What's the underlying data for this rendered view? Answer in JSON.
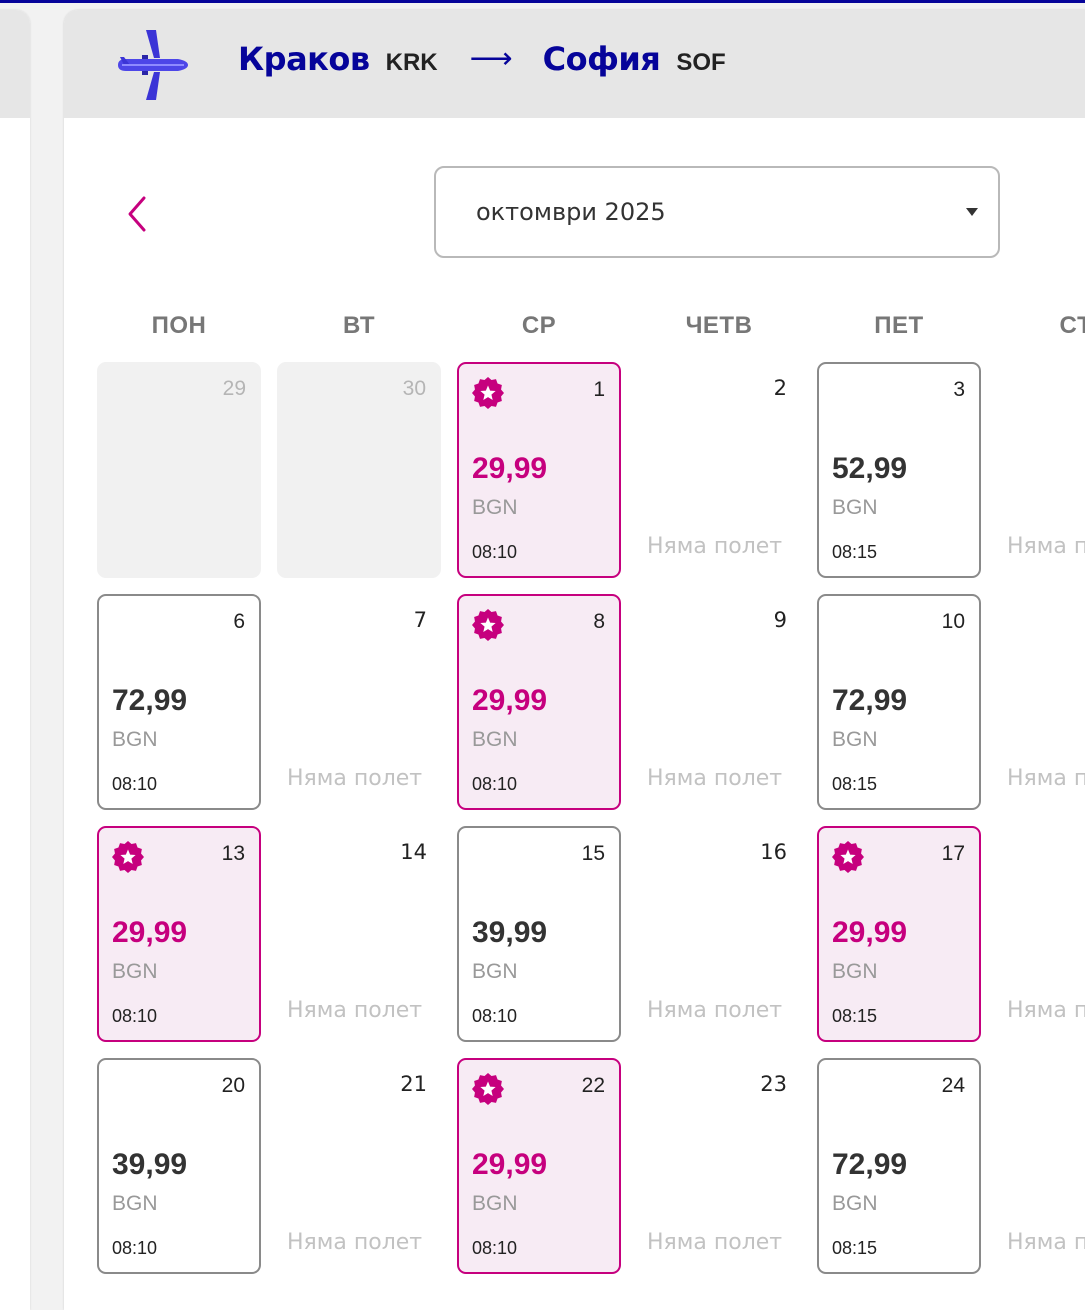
{
  "route": {
    "from_city": "Краков",
    "from_code": "KRK",
    "arrow": "⟶",
    "to_city": "София",
    "to_code": "SOF"
  },
  "month_select": {
    "value": "октомври 2025"
  },
  "weekdays": [
    "ПОН",
    "ВТ",
    "СР",
    "ЧЕТВ",
    "ПЕТ",
    "СЪ"
  ],
  "colors": {
    "brand": "#06049a",
    "promo": "#c6007e",
    "promo_bg": "#f7ebf4"
  },
  "days": [
    {
      "day": "29",
      "state": "muted"
    },
    {
      "day": "30",
      "state": "muted"
    },
    {
      "day": "1",
      "state": "promo",
      "price": "29,99",
      "currency": "BGN",
      "time": "08:10",
      "icon": "star-badge-icon"
    },
    {
      "day": "2",
      "state": "noflight",
      "label": "Няма полет"
    },
    {
      "day": "3",
      "state": "reg",
      "price": "52,99",
      "currency": "BGN",
      "time": "08:15"
    },
    {
      "day": "",
      "state": "noflight",
      "label": "Няма полет"
    },
    {
      "day": "6",
      "state": "reg",
      "price": "72,99",
      "currency": "BGN",
      "time": "08:10"
    },
    {
      "day": "7",
      "state": "noflight",
      "label": "Няма полет"
    },
    {
      "day": "8",
      "state": "promo",
      "price": "29,99",
      "currency": "BGN",
      "time": "08:10",
      "icon": "star-badge-icon"
    },
    {
      "day": "9",
      "state": "noflight",
      "label": "Няма полет"
    },
    {
      "day": "10",
      "state": "reg",
      "price": "72,99",
      "currency": "BGN",
      "time": "08:15"
    },
    {
      "day": "",
      "state": "noflight",
      "label": "Няма полет"
    },
    {
      "day": "13",
      "state": "promo",
      "price": "29,99",
      "currency": "BGN",
      "time": "08:10",
      "icon": "star-badge-icon"
    },
    {
      "day": "14",
      "state": "noflight",
      "label": "Няма полет"
    },
    {
      "day": "15",
      "state": "reg",
      "price": "39,99",
      "currency": "BGN",
      "time": "08:10"
    },
    {
      "day": "16",
      "state": "noflight",
      "label": "Няма полет"
    },
    {
      "day": "17",
      "state": "promo",
      "price": "29,99",
      "currency": "BGN",
      "time": "08:15",
      "icon": "star-badge-icon"
    },
    {
      "day": "",
      "state": "noflight",
      "label": "Няма полет"
    },
    {
      "day": "20",
      "state": "reg",
      "price": "39,99",
      "currency": "BGN",
      "time": "08:10"
    },
    {
      "day": "21",
      "state": "noflight",
      "label": "Няма полет"
    },
    {
      "day": "22",
      "state": "promo",
      "price": "29,99",
      "currency": "BGN",
      "time": "08:10",
      "icon": "star-badge-icon"
    },
    {
      "day": "23",
      "state": "noflight",
      "label": "Няма полет"
    },
    {
      "day": "24",
      "state": "reg",
      "price": "72,99",
      "currency": "BGN",
      "time": "08:15"
    },
    {
      "day": "",
      "state": "noflight",
      "label": "Няма полет"
    }
  ]
}
